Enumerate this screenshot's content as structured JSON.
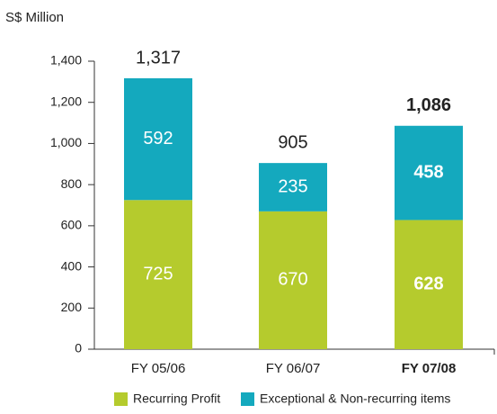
{
  "chart_data": {
    "type": "stacked_bar",
    "y_axis_label": "S$ Million",
    "categories": [
      "FY 05/06",
      "FY 06/07",
      "FY 07/08"
    ],
    "series": [
      {
        "name": "Recurring Profit",
        "color": "#b5cb2d",
        "values": [
          725,
          670,
          628
        ]
      },
      {
        "name": "Exceptional & Non-recurring items",
        "color": "#14a9be",
        "values": [
          592,
          235,
          458
        ]
      }
    ],
    "total_labels": [
      "1,317",
      "905",
      "1,086"
    ],
    "ylim": [
      0,
      1400
    ],
    "yticks": [
      0,
      200,
      400,
      600,
      800,
      {
        "value": 1000,
        "label": "1,000"
      },
      {
        "value": 1200,
        "label": "1,200"
      },
      {
        "value": 1400,
        "label": "1,400"
      }
    ],
    "legend": "bottom"
  }
}
